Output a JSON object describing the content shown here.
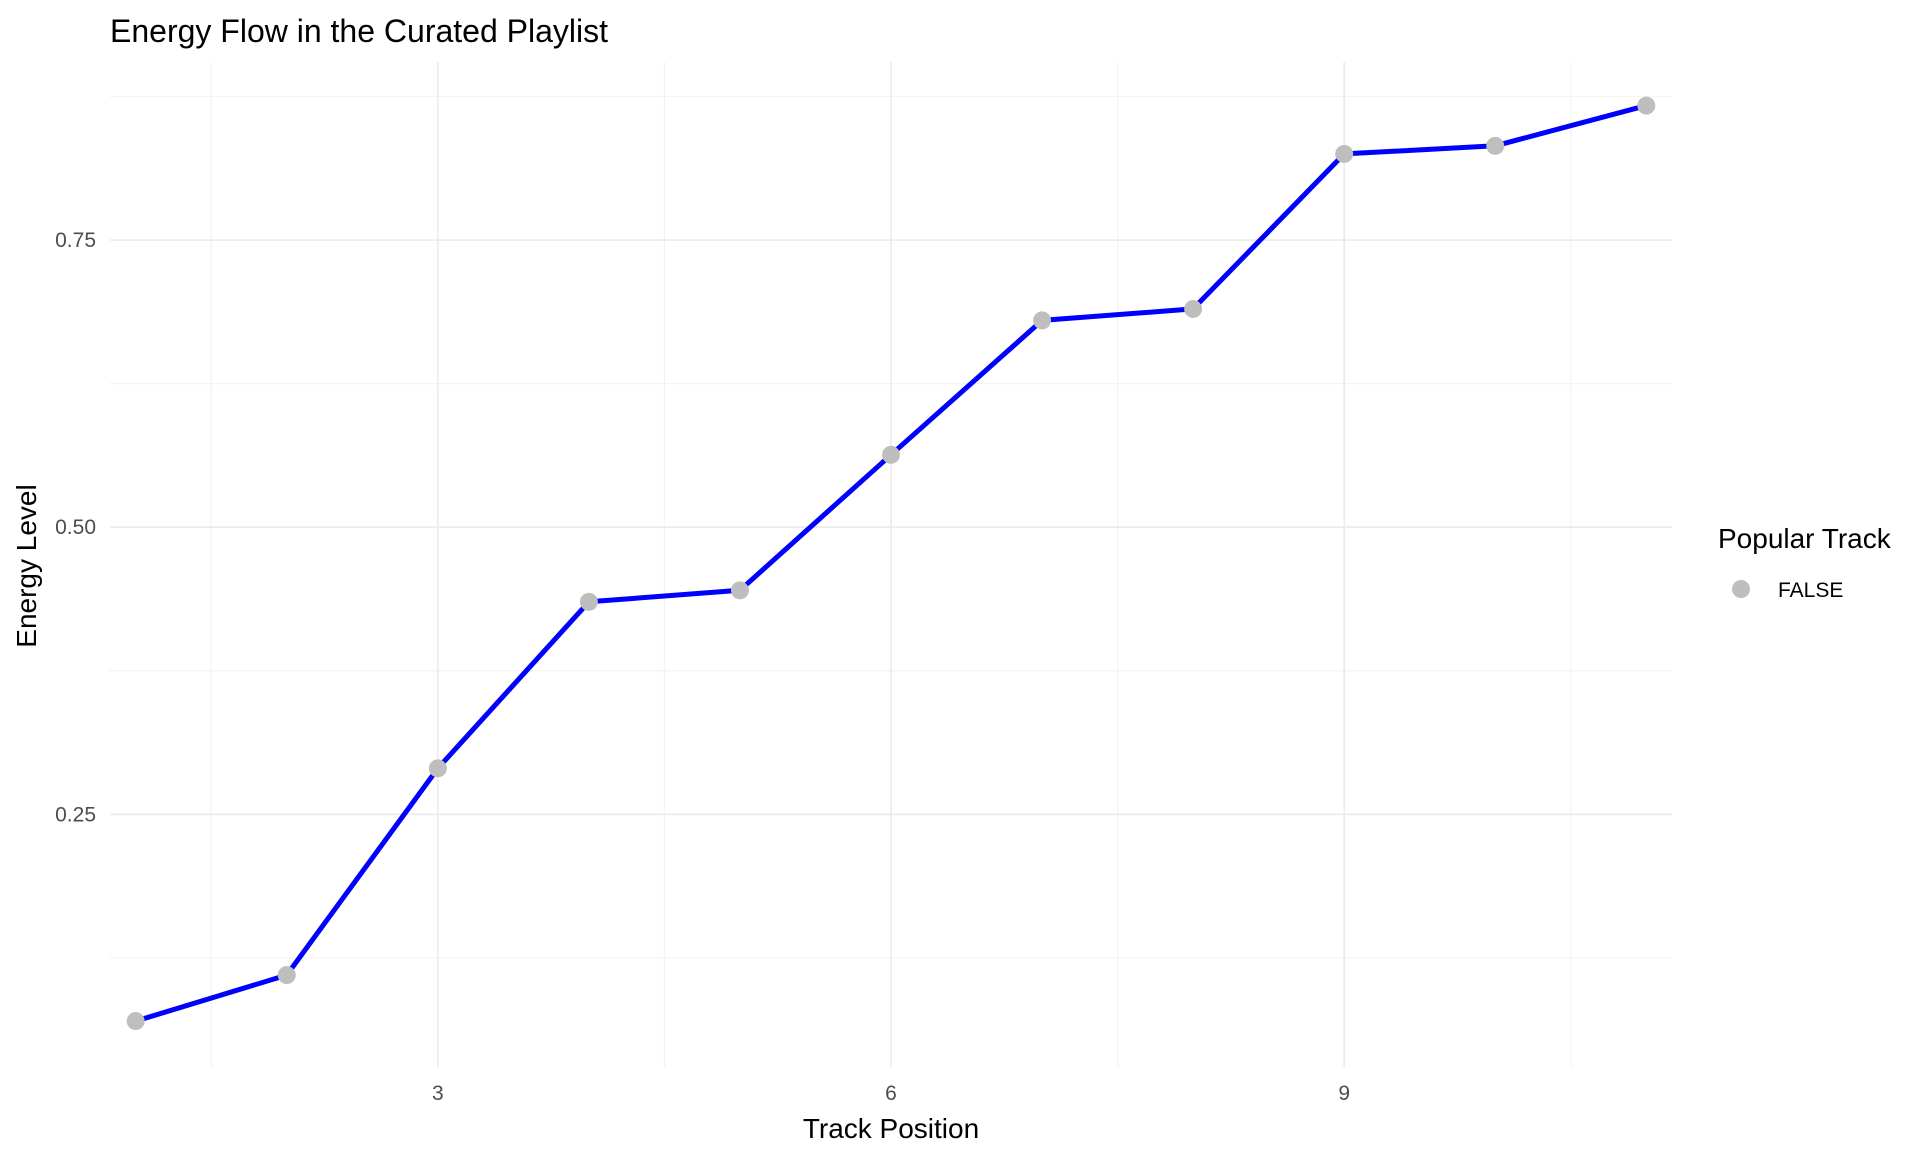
{
  "chart_data": {
    "type": "line",
    "title": "Energy Flow in the Curated Playlist",
    "xlabel": "Track Position",
    "ylabel": "Energy Level",
    "xlim": [
      0.83,
      11.17
    ],
    "ylim": [
      0.03,
      0.905
    ],
    "x_ticks": [
      3,
      6,
      9
    ],
    "x_minor": [
      1.5,
      4.5,
      7.5,
      10.5
    ],
    "y_ticks": [
      0.25,
      0.5,
      0.75
    ],
    "y_tick_labels": [
      "0.25",
      "0.50",
      "0.75"
    ],
    "y_minor": [
      0.125,
      0.375,
      0.625,
      0.875
    ],
    "grid": true,
    "legend": {
      "title": "Popular Track",
      "position": "right",
      "entries": [
        {
          "label": "FALSE",
          "color": "#bebebe"
        }
      ]
    },
    "series": [
      {
        "line_color": "#0000ff",
        "point_color": "#bebebe",
        "x": [
          1,
          2,
          3,
          4,
          5,
          6,
          7,
          8,
          9,
          10,
          11
        ],
        "y": [
          0.07,
          0.11,
          0.29,
          0.435,
          0.445,
          0.563,
          0.68,
          0.69,
          0.825,
          0.832,
          0.867
        ]
      }
    ]
  }
}
